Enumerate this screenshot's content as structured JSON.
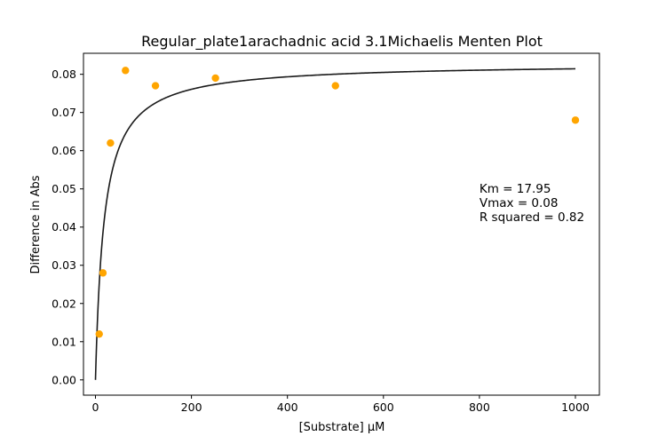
{
  "chart_data": {
    "type": "scatter",
    "title": "Regular_plate1arachadnic acid 3.1Michaelis Menten Plot",
    "xlabel": "[Substrate] µM",
    "ylabel": "Difference in Abs",
    "xlim": [
      -25,
      1050
    ],
    "ylim": [
      -0.004,
      0.0855
    ],
    "xticks": [
      0,
      200,
      400,
      600,
      800,
      1000
    ],
    "yticks": [
      0.0,
      0.01,
      0.02,
      0.03,
      0.04,
      0.05,
      0.06,
      0.07,
      0.08
    ],
    "grid": false,
    "series": [
      {
        "kind": "scatter",
        "color": "#ffa500",
        "x": [
          7.8,
          15.6,
          31.25,
          62.5,
          125,
          250,
          500,
          1000
        ],
        "y": [
          0.012,
          0.028,
          0.062,
          0.081,
          0.077,
          0.079,
          0.077,
          0.068
        ]
      },
      {
        "kind": "fit",
        "color": "#1a1a1a",
        "model": "michaelis-menten",
        "Vmax": 0.0829,
        "Km": 17.95,
        "xrange": [
          0,
          1000
        ]
      }
    ],
    "annotation": {
      "lines": [
        "Km = 17.95",
        "Vmax = 0.08",
        "R squared = 0.82"
      ],
      "x": 800,
      "y": 0.049
    }
  }
}
